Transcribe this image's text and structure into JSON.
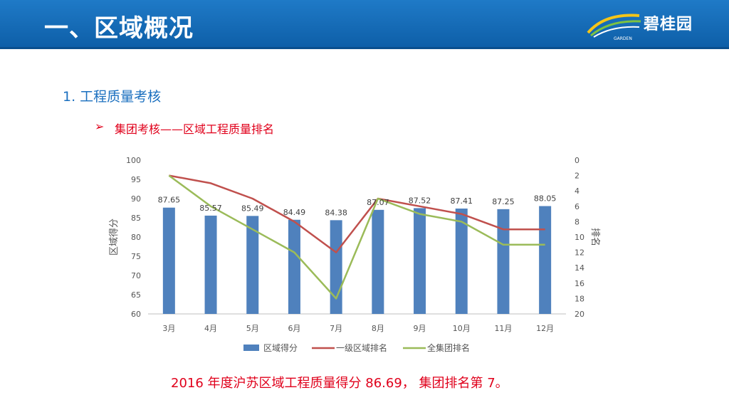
{
  "header": {
    "title": "一、区域概况",
    "logo_text": "碧桂园",
    "logo_small": "GARDEN",
    "accent": "#1a6fbf",
    "bar_color": "#0e5fa8"
  },
  "section": {
    "title": "1. 工程质量考核"
  },
  "subsection": {
    "bullet": "➢",
    "title": "集团考核——区域工程质量排名"
  },
  "footnote": "2016 年度沪苏区域工程质量得分 86.69， 集团排名第 7。",
  "chart_data": {
    "type": "bar+line",
    "categories": [
      "3月",
      "4月",
      "5月",
      "6月",
      "7月",
      "8月",
      "9月",
      "10月",
      "11月",
      "12月"
    ],
    "y_left": {
      "label": "区域得分",
      "range": [
        60,
        100
      ],
      "ticks": [
        60,
        65,
        70,
        75,
        80,
        85,
        90,
        95,
        100
      ]
    },
    "y_right": {
      "label": "排名",
      "range": [
        0,
        20
      ],
      "ticks": [
        0,
        2,
        4,
        6,
        8,
        10,
        12,
        14,
        16,
        18,
        20
      ],
      "reversed": true
    },
    "series": [
      {
        "name": "区域得分",
        "type": "bar",
        "axis": "left",
        "color": "#4f81bd",
        "values": [
          87.65,
          85.57,
          85.49,
          84.49,
          84.38,
          87.07,
          87.52,
          87.41,
          87.25,
          88.05
        ],
        "labels": [
          "87.65",
          "85.57",
          "85.49",
          "84.49",
          "84.38",
          "87.07",
          "87.52",
          "87.41",
          "87.25",
          "88.05"
        ]
      },
      {
        "name": "一级区域排名",
        "type": "line",
        "axis": "right",
        "color": "#c0504d",
        "values": [
          2,
          3,
          5,
          8,
          12,
          5,
          6,
          7,
          9,
          9
        ]
      },
      {
        "name": "全集团排名",
        "type": "line",
        "axis": "right",
        "color": "#9bbb59",
        "values": [
          2,
          6,
          9,
          12,
          18,
          5,
          7,
          8,
          11,
          11
        ]
      }
    ],
    "legend_position": "bottom",
    "grid": false
  }
}
